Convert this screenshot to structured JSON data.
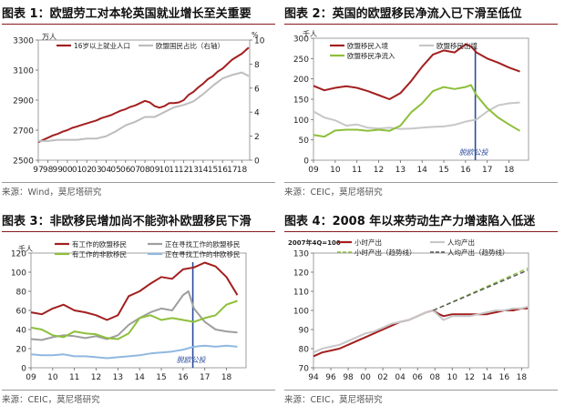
{
  "panels": [
    {
      "title": "图表 1：欧盟劳工对本轮英国就业增长至关重要",
      "source": "来源：Wind，莫尼塔研究"
    },
    {
      "title": "图表 2：英国的欧盟移民净流入已下滑至低位",
      "source": "来源：CEIC，莫尼塔研究"
    },
    {
      "title": "图表 3：非欧移民增加尚不能弥补欧盟移民下滑",
      "source": "来源：CEIC，莫尼塔研究"
    },
    {
      "title": "图表 4：2008 年以来劳动生产力增速陷入低迷",
      "source": "来源：CEIC，莫尼塔研究"
    }
  ],
  "chart_data": [
    {
      "type": "line",
      "y_unit": "万人",
      "y2_unit": "%",
      "ylim": [
        2500,
        3300
      ],
      "yticks": [
        2500,
        2700,
        2900,
        3100,
        3300
      ],
      "y2lim": [
        0,
        10
      ],
      "y2ticks": [
        0,
        2,
        4,
        6,
        8,
        10
      ],
      "xlim": [
        1997,
        2018.8
      ],
      "xticks": [
        "97",
        "98",
        "99",
        "00",
        "01",
        "02",
        "03",
        "04",
        "05",
        "06",
        "07",
        "08",
        "09",
        "10",
        "11",
        "12",
        "13",
        "14",
        "15",
        "16",
        "17",
        "18"
      ],
      "series": [
        {
          "name": "16岁以上就业人口",
          "axis": "left",
          "color": "#a31f1f",
          "x": [
            1997,
            1997.5,
            1998,
            1998.5,
            1999,
            1999.5,
            2000,
            2000.5,
            2001,
            2001.5,
            2002,
            2002.5,
            2003,
            2003.5,
            2004,
            2004.5,
            2005,
            2005.5,
            2006,
            2006.5,
            2007,
            2007.5,
            2008,
            2008.5,
            2009,
            2009.5,
            2010,
            2010.5,
            2011,
            2011.5,
            2012,
            2012.5,
            2013,
            2013.5,
            2014,
            2014.5,
            2015,
            2015.5,
            2016,
            2016.5,
            2017,
            2017.5,
            2018,
            2018.7
          ],
          "y": [
            2620,
            2635,
            2650,
            2665,
            2675,
            2690,
            2700,
            2715,
            2725,
            2735,
            2745,
            2755,
            2765,
            2780,
            2790,
            2800,
            2815,
            2830,
            2840,
            2855,
            2865,
            2880,
            2895,
            2885,
            2860,
            2850,
            2860,
            2880,
            2880,
            2885,
            2900,
            2935,
            2955,
            2985,
            3010,
            3040,
            3060,
            3090,
            3110,
            3140,
            3170,
            3190,
            3210,
            3250
          ]
        },
        {
          "name": "欧盟国民占比（右轴）",
          "axis": "right",
          "color": "#bdbdbd",
          "x": [
            1997,
            1998,
            1999,
            2000,
            2001,
            2002,
            2003,
            2004,
            2005,
            2006,
            2007,
            2008,
            2009,
            2010,
            2011,
            2012,
            2013,
            2014,
            2015,
            2016,
            2017,
            2018,
            2018.7
          ],
          "y": [
            1.6,
            1.6,
            1.7,
            1.7,
            1.7,
            1.8,
            1.8,
            2.0,
            2.4,
            2.9,
            3.2,
            3.6,
            3.6,
            4.0,
            4.4,
            4.6,
            4.9,
            5.5,
            6.2,
            6.8,
            7.1,
            7.3,
            7.0
          ]
        }
      ]
    },
    {
      "type": "line",
      "y_unit": "千人",
      "ylim": [
        0,
        300
      ],
      "yticks": [
        0,
        50,
        100,
        150,
        200,
        250,
        300
      ],
      "xlim": [
        2009,
        2018.9
      ],
      "xticks": [
        "09",
        "10",
        "11",
        "12",
        "13",
        "14",
        "15",
        "16",
        "17",
        "18"
      ],
      "annotation": "脱欧公投",
      "annotation_x": 2016.45,
      "series": [
        {
          "name": "欧盟移民入境",
          "color": "#a31f1f",
          "x": [
            2009,
            2009.5,
            2010,
            2010.5,
            2011,
            2011.5,
            2012,
            2012.5,
            2013,
            2013.5,
            2014,
            2014.5,
            2015,
            2015.5,
            2016,
            2016.25,
            2016.5,
            2017,
            2017.5,
            2018,
            2018.5
          ],
          "y": [
            183,
            172,
            178,
            182,
            178,
            170,
            160,
            150,
            165,
            195,
            230,
            260,
            270,
            265,
            285,
            280,
            265,
            250,
            240,
            228,
            218
          ]
        },
        {
          "name": "欧盟移民出境",
          "color": "#c7c7c7",
          "x": [
            2009,
            2009.5,
            2010,
            2010.5,
            2011,
            2011.5,
            2012,
            2012.5,
            2013,
            2013.5,
            2014,
            2014.5,
            2015,
            2015.5,
            2016,
            2016.5,
            2017,
            2017.5,
            2018,
            2018.5
          ],
          "y": [
            120,
            105,
            98,
            85,
            88,
            80,
            78,
            80,
            77,
            78,
            80,
            82,
            83,
            87,
            95,
            100,
            120,
            135,
            140,
            142
          ]
        },
        {
          "name": "欧盟移民净流入",
          "color": "#8dbf3a",
          "x": [
            2009,
            2009.5,
            2010,
            2010.5,
            2011,
            2011.5,
            2012,
            2012.5,
            2013,
            2013.5,
            2014,
            2014.5,
            2015,
            2015.5,
            2016,
            2016.25,
            2016.5,
            2017,
            2017.5,
            2018,
            2018.5
          ],
          "y": [
            62,
            58,
            73,
            75,
            75,
            72,
            75,
            72,
            85,
            118,
            140,
            170,
            180,
            175,
            180,
            185,
            160,
            128,
            105,
            88,
            72
          ]
        }
      ]
    },
    {
      "type": "line",
      "y_unit": "千人",
      "ylim": [
        0,
        120
      ],
      "yticks": [
        0,
        20,
        40,
        60,
        80,
        100,
        120
      ],
      "xlim": [
        2009,
        2018.9
      ],
      "xticks": [
        "09",
        "10",
        "11",
        "12",
        "13",
        "14",
        "15",
        "16",
        "17",
        "18"
      ],
      "annotation": "脱欧公投",
      "annotation_x": 2016.45,
      "series": [
        {
          "name": "有工作的欧盟移民",
          "color": "#a31f1f",
          "x": [
            2009,
            2009.5,
            2010,
            2010.5,
            2011,
            2011.5,
            2012,
            2012.5,
            2013,
            2013.5,
            2014,
            2014.5,
            2015,
            2015.5,
            2016,
            2016.5,
            2017,
            2017.5,
            2018,
            2018.5
          ],
          "y": [
            58,
            56,
            62,
            66,
            60,
            58,
            55,
            50,
            55,
            75,
            80,
            88,
            95,
            93,
            103,
            105,
            110,
            106,
            95,
            76
          ]
        },
        {
          "name": "正在寻找工作的欧盟移民",
          "color": "#9e9e9e",
          "x": [
            2009,
            2009.5,
            2010,
            2010.5,
            2011,
            2011.5,
            2012,
            2012.5,
            2013,
            2013.5,
            2014,
            2014.5,
            2015,
            2015.5,
            2016,
            2016.25,
            2016.5,
            2017,
            2017.5,
            2018,
            2018.5
          ],
          "y": [
            30,
            29,
            32,
            34,
            33,
            31,
            33,
            30,
            34,
            45,
            52,
            58,
            62,
            60,
            76,
            80,
            62,
            48,
            40,
            38,
            37
          ]
        },
        {
          "name": "有工作的非欧移民",
          "color": "#8dbf3a",
          "x": [
            2009,
            2009.5,
            2010,
            2010.5,
            2011,
            2011.5,
            2012,
            2012.5,
            2013,
            2013.5,
            2014,
            2014.5,
            2015,
            2015.5,
            2016,
            2016.5,
            2017,
            2017.5,
            2018,
            2018.5
          ],
          "y": [
            42,
            40,
            34,
            32,
            38,
            36,
            35,
            31,
            30,
            36,
            52,
            55,
            50,
            52,
            50,
            48,
            52,
            55,
            66,
            70
          ]
        },
        {
          "name": "正在寻找工作的非欧移民",
          "color": "#8fb8e0",
          "x": [
            2009,
            2009.5,
            2010,
            2010.5,
            2011,
            2011.5,
            2012,
            2012.5,
            2013,
            2013.5,
            2014,
            2014.5,
            2015,
            2015.5,
            2016,
            2016.5,
            2017,
            2017.5,
            2018,
            2018.5
          ],
          "y": [
            14,
            13,
            13,
            14,
            12,
            12,
            11,
            10,
            11,
            12,
            13,
            15,
            16,
            17,
            19,
            22,
            23,
            22,
            23,
            22
          ]
        }
      ]
    },
    {
      "type": "line",
      "y_unit": "2007年4Q=100",
      "ylim": [
        70,
        130
      ],
      "yticks": [
        70,
        80,
        90,
        100,
        110,
        120,
        130
      ],
      "xlim": [
        1994,
        2018.8
      ],
      "xticks": [
        "94",
        "96",
        "98",
        "00",
        "02",
        "04",
        "06",
        "08",
        "10",
        "12",
        "14",
        "16",
        "18"
      ],
      "series": [
        {
          "name": "小时产出",
          "color": "#a31f1f",
          "dash": false,
          "x": [
            1994,
            1995,
            1996,
            1997,
            1998,
            1999,
            2000,
            2001,
            2002,
            2003,
            2004,
            2005,
            2006,
            2007,
            2007.8,
            2008.5,
            2009,
            2010,
            2011,
            2012,
            2013,
            2014,
            2015,
            2016,
            2017,
            2018,
            2018.7
          ],
          "y": [
            76,
            78,
            79,
            80,
            82,
            84,
            86,
            88,
            90,
            92,
            94,
            95,
            97,
            99,
            100,
            98,
            97,
            98,
            98,
            98,
            98,
            98,
            99,
            100,
            100,
            101,
            101
          ]
        },
        {
          "name": "人均产出",
          "color": "#c7c7c7",
          "dash": false,
          "x": [
            1994,
            1995,
            1996,
            1997,
            1998,
            1999,
            2000,
            2001,
            2002,
            2003,
            2004,
            2005,
            2006,
            2007,
            2007.8,
            2008.5,
            2009,
            2010,
            2011,
            2012,
            2013,
            2014,
            2015,
            2016,
            2017,
            2018,
            2018.7
          ],
          "y": [
            78,
            80,
            81,
            82,
            84,
            86,
            88,
            89,
            91,
            93,
            94,
            95,
            97,
            99,
            100,
            97,
            95,
            97,
            97,
            97,
            98,
            99,
            100,
            100,
            101,
            101,
            102
          ]
        },
        {
          "name": "小时产出（趋势线）",
          "color": "#8dbf3a",
          "dash": true,
          "x": [
            2007.8,
            2018.7
          ],
          "y": [
            100,
            122
          ]
        },
        {
          "name": "人均产出（趋势线）",
          "color": "#555555",
          "dash": true,
          "x": [
            2007.8,
            2018.7
          ],
          "y": [
            100,
            121
          ]
        }
      ]
    }
  ]
}
